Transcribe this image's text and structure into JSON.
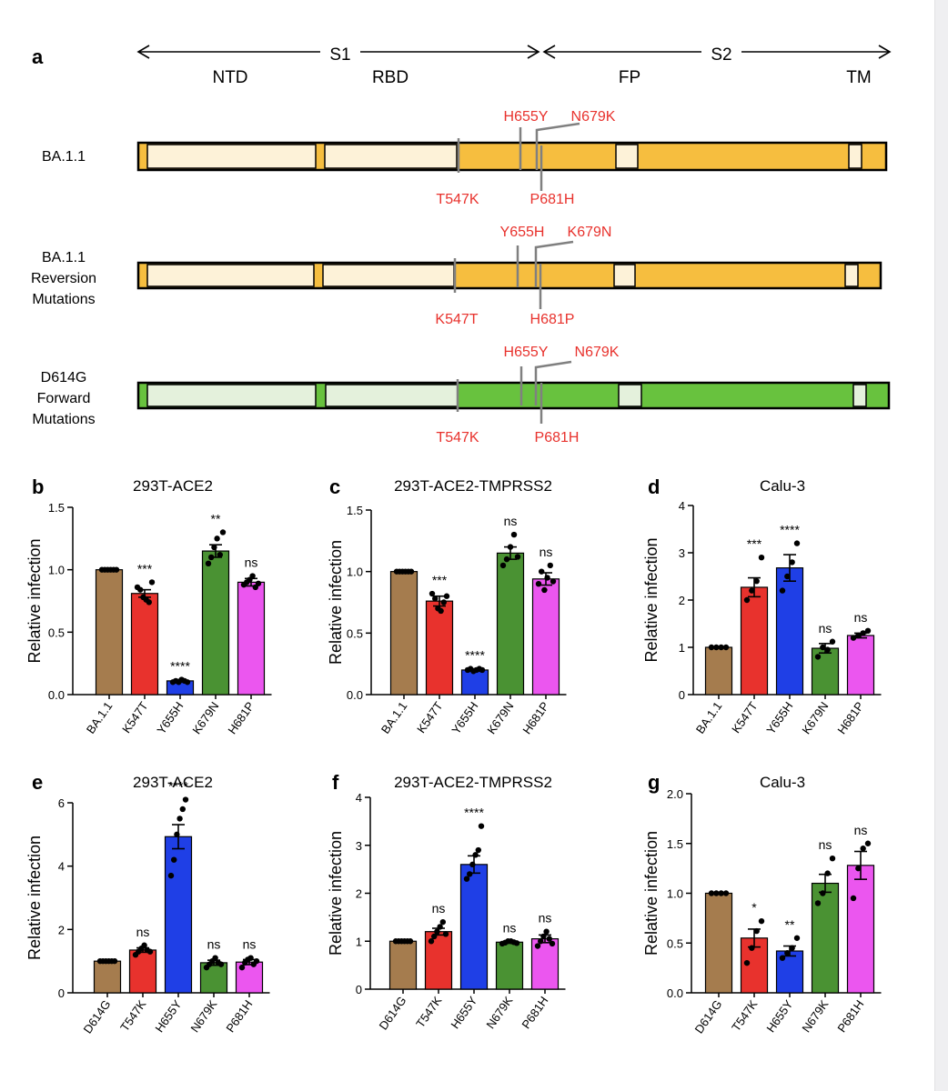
{
  "panel_a": {
    "letter": "a",
    "regions": {
      "s1": "S1",
      "s2": "S2",
      "ntd": "NTD",
      "rbd": "RBD",
      "fp": "FP",
      "tm": "TM"
    },
    "rows": [
      {
        "label_lines": [
          "BA.1.1"
        ],
        "colors": {
          "dark": "#f6be3f",
          "light": "#fdf2d8"
        },
        "top_mutations": [
          "H655Y",
          "N679K"
        ],
        "bottom_mutations": [
          "T547K",
          "P681H"
        ]
      },
      {
        "label_lines": [
          "BA.1.1",
          "Reversion",
          "Mutations"
        ],
        "colors": {
          "dark": "#f6be3f",
          "light": "#fdf2d8"
        },
        "top_mutations": [
          "Y655H",
          "K679N"
        ],
        "bottom_mutations": [
          "K547T",
          "H681P"
        ]
      },
      {
        "label_lines": [
          "D614G",
          "Forward",
          "Mutations"
        ],
        "colors": {
          "dark": "#68c23e",
          "light": "#e4f1dc"
        },
        "top_mutations": [
          "H655Y",
          "N679K"
        ],
        "bottom_mutations": [
          "T547K",
          "P681H"
        ]
      }
    ]
  },
  "chart_data": [
    {
      "panel": "b",
      "type": "bar",
      "title": "293T-ACE2",
      "ylabel": "Relative infection",
      "xlabel": "",
      "categories": [
        "BA.1.1",
        "K547T",
        "Y655H",
        "K679N",
        "H681P"
      ],
      "values": [
        1.0,
        0.81,
        0.11,
        1.15,
        0.9
      ],
      "errors": [
        0,
        0.03,
        0.01,
        0.05,
        0.03
      ],
      "significance": [
        "",
        "***",
        "****",
        "**",
        "ns"
      ],
      "points": [
        [
          1,
          1,
          1,
          1,
          1,
          1
        ],
        [
          0.86,
          0.84,
          0.78,
          0.76,
          0.74,
          0.9
        ],
        [
          0.1,
          0.11,
          0.1,
          0.12,
          0.11,
          0.1
        ],
        [
          1.05,
          1.1,
          1.18,
          1.25,
          1.12,
          1.3
        ],
        [
          0.88,
          0.9,
          0.92,
          0.95,
          0.86,
          0.89
        ]
      ],
      "ylim": [
        0,
        1.5
      ],
      "yticks": [
        "0.0",
        "0.5",
        "1.0",
        "1.5"
      ]
    },
    {
      "panel": "c",
      "type": "bar",
      "title": "293T-ACE2-TMPRSS2",
      "ylabel": "Relative infection",
      "xlabel": "",
      "categories": [
        "BA.1.1",
        "K547T",
        "Y655H",
        "K679N",
        "H681P"
      ],
      "values": [
        1.0,
        0.76,
        0.2,
        1.15,
        0.94
      ],
      "errors": [
        0,
        0.04,
        0.01,
        0.05,
        0.05
      ],
      "significance": [
        "",
        "***",
        "****",
        "ns",
        "ns"
      ],
      "points": [
        [
          1,
          1,
          1,
          1,
          1,
          1
        ],
        [
          0.82,
          0.78,
          0.7,
          0.68,
          0.75,
          0.8
        ],
        [
          0.2,
          0.21,
          0.19,
          0.2,
          0.21,
          0.2
        ],
        [
          1.05,
          1.1,
          1.2,
          1.3,
          1.12
        ],
        [
          0.9,
          1.0,
          0.85,
          0.95,
          1.05,
          0.92
        ]
      ],
      "ylim": [
        0,
        1.5
      ],
      "yticks": [
        "0.0",
        "0.5",
        "1.0",
        "1.5"
      ]
    },
    {
      "panel": "d",
      "type": "bar",
      "title": "Calu-3",
      "ylabel": "Relative infection",
      "xlabel": "",
      "categories": [
        "BA.1.1",
        "K547T",
        "Y655H",
        "K679N",
        "H681P"
      ],
      "values": [
        1.0,
        2.27,
        2.68,
        0.98,
        1.25
      ],
      "errors": [
        0,
        0.2,
        0.28,
        0.1,
        0.05
      ],
      "significance": [
        "",
        "***",
        "****",
        "ns",
        "ns"
      ],
      "points": [
        [
          1,
          1,
          1,
          1
        ],
        [
          2.0,
          2.2,
          2.4,
          2.9
        ],
        [
          2.2,
          2.5,
          2.8,
          3.2
        ],
        [
          0.8,
          1.0,
          0.95,
          1.12
        ],
        [
          1.2,
          1.25,
          1.3,
          1.35
        ]
      ],
      "ylim": [
        0,
        4
      ],
      "yticks": [
        "0",
        "1",
        "2",
        "3",
        "4"
      ]
    },
    {
      "panel": "e",
      "type": "bar",
      "title": "293T-ACE2",
      "ylabel": "Relative infection",
      "xlabel": "",
      "categories": [
        "D614G",
        "T547K",
        "H655Y",
        "N679K",
        "P681H"
      ],
      "values": [
        1.0,
        1.35,
        4.93,
        0.95,
        0.97
      ],
      "errors": [
        0,
        0.07,
        0.38,
        0.08,
        0.08
      ],
      "significance": [
        "",
        "ns",
        "****",
        "ns",
        "ns"
      ],
      "points": [
        [
          1,
          1,
          1,
          1,
          1,
          1
        ],
        [
          1.2,
          1.3,
          1.4,
          1.5,
          1.35,
          1.3
        ],
        [
          3.7,
          4.2,
          5.0,
          5.5,
          5.8,
          6.1
        ],
        [
          0.8,
          0.9,
          1.0,
          1.1,
          0.95,
          0.9
        ],
        [
          0.8,
          0.95,
          1.05,
          1.1,
          0.9,
          1.0
        ]
      ],
      "ylim": [
        0,
        6
      ],
      "yticks": [
        "0",
        "2",
        "4",
        "6"
      ]
    },
    {
      "panel": "f",
      "type": "bar",
      "title": "293T-ACE2-TMPRSS2",
      "ylabel": "Relative infection",
      "xlabel": "",
      "categories": [
        "D614G",
        "T547K",
        "H655Y",
        "N679K",
        "P681H"
      ],
      "values": [
        1.0,
        1.2,
        2.6,
        0.98,
        1.05
      ],
      "errors": [
        0,
        0.07,
        0.18,
        0.02,
        0.08
      ],
      "significance": [
        "",
        "ns",
        "****",
        "ns",
        "ns"
      ],
      "points": [
        [
          1,
          1,
          1,
          1,
          1,
          1
        ],
        [
          1.0,
          1.1,
          1.2,
          1.3,
          1.4,
          1.15
        ],
        [
          2.3,
          2.4,
          2.6,
          2.8,
          2.9,
          3.4
        ],
        [
          0.95,
          0.97,
          1.0,
          1.0,
          0.98,
          0.96
        ],
        [
          0.9,
          1.0,
          1.1,
          1.2,
          1.05,
          0.95
        ]
      ],
      "ylim": [
        0,
        4
      ],
      "yticks": [
        "0",
        "1",
        "2",
        "3",
        "4"
      ]
    },
    {
      "panel": "g",
      "type": "bar",
      "title": "Calu-3",
      "ylabel": "Relative infection",
      "xlabel": "",
      "categories": [
        "D614G",
        "T547K",
        "H655Y",
        "N679K",
        "P681H"
      ],
      "values": [
        1.0,
        0.55,
        0.42,
        1.1,
        1.28
      ],
      "errors": [
        0,
        0.09,
        0.05,
        0.09,
        0.14
      ],
      "significance": [
        "",
        "*",
        "**",
        "ns",
        "ns"
      ],
      "points": [
        [
          1,
          1,
          1,
          1
        ],
        [
          0.3,
          0.45,
          0.62,
          0.72
        ],
        [
          0.35,
          0.4,
          0.45,
          0.55
        ],
        [
          0.9,
          1.0,
          1.2,
          1.35
        ],
        [
          0.95,
          1.25,
          1.45,
          1.5
        ]
      ],
      "ylim": [
        0,
        2.0
      ],
      "yticks": [
        "0.0",
        "0.5",
        "1.0",
        "1.5",
        "2.0"
      ]
    }
  ],
  "colors": {
    "bars": [
      "#a57c4e",
      "#e8322d",
      "#1f3fe6",
      "#4a9233",
      "#eb56ef"
    ],
    "mutation_text": "#e8322d"
  }
}
